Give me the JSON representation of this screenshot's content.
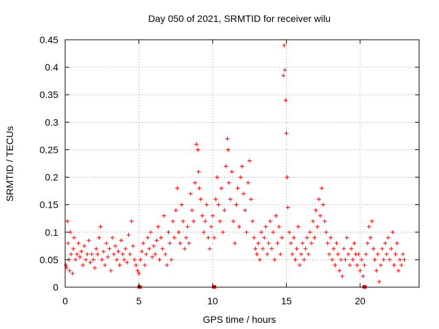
{
  "chart_data": {
    "type": "scatter",
    "title": "Day 050 of 2021, SRMTID for receiver wilu",
    "xlabel": "GPS time / hours",
    "ylabel": "SRMTID / TECUs",
    "xlim": [
      0,
      24
    ],
    "ylim": [
      0,
      0.45
    ],
    "x_ticks": [
      "0",
      "5",
      "10",
      "15",
      "20"
    ],
    "x_tick_values": [
      0,
      5,
      10,
      15,
      20
    ],
    "y_ticks": [
      "0",
      "0.05",
      "0.1",
      "0.15",
      "0.2",
      "0.25",
      "0.3",
      "0.35",
      "0.4",
      "0.45"
    ],
    "y_tick_values": [
      0,
      0.05,
      0.1,
      0.15,
      0.2,
      0.25,
      0.3,
      0.35,
      0.4,
      0.45
    ],
    "grid": true,
    "marker": "+",
    "series": [
      {
        "name": "SRMTID",
        "color": "#ff0000",
        "points": [
          [
            0.05,
            0.04
          ],
          [
            0.1,
            0.035
          ],
          [
            0.15,
            0.12
          ],
          [
            0.2,
            0.08
          ],
          [
            0.25,
            0.05
          ],
          [
            0.3,
            0.03
          ],
          [
            0.35,
            0.1
          ],
          [
            0.4,
            0.06
          ],
          [
            0.5,
            0.025
          ],
          [
            0.55,
            0.07
          ],
          [
            0.6,
            0.09
          ],
          [
            0.7,
            0.05
          ],
          [
            0.8,
            0.06
          ],
          [
            0.9,
            0.08
          ],
          [
            1.0,
            0.055
          ],
          [
            1.1,
            0.065
          ],
          [
            1.2,
            0.04
          ],
          [
            1.3,
            0.075
          ],
          [
            1.4,
            0.05
          ],
          [
            1.5,
            0.06
          ],
          [
            1.6,
            0.085
          ],
          [
            1.7,
            0.045
          ],
          [
            1.8,
            0.06
          ],
          [
            1.9,
            0.05
          ],
          [
            2.0,
            0.035
          ],
          [
            2.1,
            0.07
          ],
          [
            2.2,
            0.06
          ],
          [
            2.3,
            0.09
          ],
          [
            2.4,
            0.11
          ],
          [
            2.5,
            0.05
          ],
          [
            2.6,
            0.065
          ],
          [
            2.7,
            0.04
          ],
          [
            2.8,
            0.08
          ],
          [
            2.9,
            0.055
          ],
          [
            3.0,
            0.07
          ],
          [
            3.1,
            0.03
          ],
          [
            3.2,
            0.09
          ],
          [
            3.3,
            0.06
          ],
          [
            3.4,
            0.075
          ],
          [
            3.5,
            0.05
          ],
          [
            3.6,
            0.065
          ],
          [
            3.7,
            0.04
          ],
          [
            3.8,
            0.085
          ],
          [
            3.9,
            0.06
          ],
          [
            4.0,
            0.05
          ],
          [
            4.1,
            0.07
          ],
          [
            4.2,
            0.045
          ],
          [
            4.3,
            0.095
          ],
          [
            4.4,
            0.06
          ],
          [
            4.5,
            0.12
          ],
          [
            4.6,
            0.075
          ],
          [
            4.7,
            0.05
          ],
          [
            4.8,
            0.04
          ],
          [
            4.9,
            0.03
          ],
          [
            5.0,
            0.025
          ],
          [
            5.1,
            0.05
          ],
          [
            5.2,
            0.065
          ],
          [
            5.3,
            0.08
          ],
          [
            5.4,
            0.04
          ],
          [
            5.5,
            0.06
          ],
          [
            5.6,
            0.09
          ],
          [
            5.7,
            0.07
          ],
          [
            5.8,
            0.1
          ],
          [
            5.9,
            0.055
          ],
          [
            6.0,
            0.075
          ],
          [
            6.1,
            0.06
          ],
          [
            6.2,
            0.085
          ],
          [
            6.3,
            0.11
          ],
          [
            6.4,
            0.05
          ],
          [
            6.5,
            0.09
          ],
          [
            6.6,
            0.07
          ],
          [
            6.7,
            0.13
          ],
          [
            6.8,
            0.06
          ],
          [
            6.9,
            0.04
          ],
          [
            7.0,
            0.1
          ],
          [
            7.1,
            0.08
          ],
          [
            7.2,
            0.05
          ],
          [
            7.3,
            0.12
          ],
          [
            7.4,
            0.09
          ],
          [
            7.5,
            0.14
          ],
          [
            7.6,
            0.18
          ],
          [
            7.7,
            0.1
          ],
          [
            7.8,
            0.08
          ],
          [
            7.9,
            0.15
          ],
          [
            8.0,
            0.12
          ],
          [
            8.1,
            0.07
          ],
          [
            8.2,
            0.09
          ],
          [
            8.3,
            0.11
          ],
          [
            8.4,
            0.08
          ],
          [
            8.5,
            0.17
          ],
          [
            8.6,
            0.14
          ],
          [
            8.7,
            0.12
          ],
          [
            8.8,
            0.19
          ],
          [
            8.9,
            0.26
          ],
          [
            9.0,
            0.25
          ],
          [
            9.05,
            0.21
          ],
          [
            9.1,
            0.18
          ],
          [
            9.2,
            0.16
          ],
          [
            9.3,
            0.13
          ],
          [
            9.4,
            0.1
          ],
          [
            9.5,
            0.12
          ],
          [
            9.6,
            0.15
          ],
          [
            9.7,
            0.09
          ],
          [
            9.8,
            0.07
          ],
          [
            9.9,
            0.11
          ],
          [
            10.0,
            0.13
          ],
          [
            10.1,
            0.09
          ],
          [
            10.2,
            0.16
          ],
          [
            10.3,
            0.2
          ],
          [
            10.4,
            0.15
          ],
          [
            10.5,
            0.12
          ],
          [
            10.6,
            0.18
          ],
          [
            10.7,
            0.1
          ],
          [
            10.8,
            0.14
          ],
          [
            10.9,
            0.22
          ],
          [
            11.0,
            0.27
          ],
          [
            11.05,
            0.25
          ],
          [
            11.1,
            0.19
          ],
          [
            11.2,
            0.16
          ],
          [
            11.3,
            0.21
          ],
          [
            11.4,
            0.12
          ],
          [
            11.5,
            0.08
          ],
          [
            11.6,
            0.15
          ],
          [
            11.7,
            0.18
          ],
          [
            11.8,
            0.11
          ],
          [
            11.9,
            0.2
          ],
          [
            12.0,
            0.22
          ],
          [
            12.1,
            0.17
          ],
          [
            12.2,
            0.14
          ],
          [
            12.3,
            0.1
          ],
          [
            12.4,
            0.19
          ],
          [
            12.5,
            0.23
          ],
          [
            12.6,
            0.16
          ],
          [
            12.7,
            0.12
          ],
          [
            12.8,
            0.09
          ],
          [
            12.9,
            0.07
          ],
          [
            13.0,
            0.06
          ],
          [
            13.1,
            0.08
          ],
          [
            13.2,
            0.05
          ],
          [
            13.3,
            0.1
          ],
          [
            13.4,
            0.07
          ],
          [
            13.5,
            0.09
          ],
          [
            13.6,
            0.11
          ],
          [
            13.7,
            0.06
          ],
          [
            13.8,
            0.08
          ],
          [
            13.9,
            0.12
          ],
          [
            14.0,
            0.07
          ],
          [
            14.1,
            0.1
          ],
          [
            14.2,
            0.05
          ],
          [
            14.3,
            0.13
          ],
          [
            14.4,
            0.08
          ],
          [
            14.5,
            0.11
          ],
          [
            14.6,
            0.06
          ],
          [
            14.7,
            0.09
          ],
          [
            14.8,
            0.385
          ],
          [
            14.85,
            0.44
          ],
          [
            14.9,
            0.395
          ],
          [
            14.95,
            0.34
          ],
          [
            15.0,
            0.28
          ],
          [
            15.05,
            0.2
          ],
          [
            15.1,
            0.145
          ],
          [
            15.2,
            0.1
          ],
          [
            15.3,
            0.08
          ],
          [
            15.4,
            0.06
          ],
          [
            15.5,
            0.09
          ],
          [
            15.6,
            0.05
          ],
          [
            15.7,
            0.07
          ],
          [
            15.8,
            0.11
          ],
          [
            15.9,
            0.04
          ],
          [
            16.0,
            0.06
          ],
          [
            16.1,
            0.08
          ],
          [
            16.2,
            0.05
          ],
          [
            16.3,
            0.07
          ],
          [
            16.4,
            0.09
          ],
          [
            16.5,
            0.06
          ],
          [
            16.6,
            0.1
          ],
          [
            16.7,
            0.08
          ],
          [
            16.8,
            0.12
          ],
          [
            16.9,
            0.09
          ],
          [
            17.0,
            0.14
          ],
          [
            17.1,
            0.11
          ],
          [
            17.2,
            0.16
          ],
          [
            17.3,
            0.13
          ],
          [
            17.4,
            0.18
          ],
          [
            17.5,
            0.15
          ],
          [
            17.6,
            0.12
          ],
          [
            17.7,
            0.1
          ],
          [
            17.8,
            0.08
          ],
          [
            17.9,
            0.06
          ],
          [
            18.0,
            0.09
          ],
          [
            18.1,
            0.05
          ],
          [
            18.2,
            0.07
          ],
          [
            18.3,
            0.04
          ],
          [
            18.4,
            0.08
          ],
          [
            18.5,
            0.06
          ],
          [
            18.6,
            0.03
          ],
          [
            18.7,
            0.05
          ],
          [
            18.8,
            0.02
          ],
          [
            18.9,
            0.07
          ],
          [
            19.0,
            0.05
          ],
          [
            19.1,
            0.09
          ],
          [
            19.2,
            0.06
          ],
          [
            19.3,
            0.04
          ],
          [
            19.4,
            0.07
          ],
          [
            19.5,
            0.05
          ],
          [
            19.6,
            0.08
          ],
          [
            19.7,
            0.06
          ],
          [
            19.8,
            0.04
          ],
          [
            19.9,
            0.06
          ],
          [
            20.0,
            0.03
          ],
          [
            20.1,
            0.05
          ],
          [
            20.2,
            0.02
          ],
          [
            20.3,
            0.04
          ],
          [
            20.4,
            0.06
          ],
          [
            20.5,
            0.08
          ],
          [
            20.6,
            0.11
          ],
          [
            20.7,
            0.09
          ],
          [
            20.8,
            0.12
          ],
          [
            20.9,
            0.07
          ],
          [
            21.0,
            0.05
          ],
          [
            21.1,
            0.03
          ],
          [
            21.2,
            0.06
          ],
          [
            21.3,
            0.01
          ],
          [
            21.4,
            0.04
          ],
          [
            21.5,
            0.07
          ],
          [
            21.6,
            0.05
          ],
          [
            21.7,
            0.08
          ],
          [
            21.8,
            0.06
          ],
          [
            21.9,
            0.09
          ],
          [
            22.0,
            0.05
          ],
          [
            22.1,
            0.07
          ],
          [
            22.2,
            0.1
          ],
          [
            22.3,
            0.04
          ],
          [
            22.4,
            0.06
          ],
          [
            22.5,
            0.08
          ],
          [
            22.6,
            0.03
          ],
          [
            22.7,
            0.05
          ],
          [
            22.8,
            0.04
          ],
          [
            22.9,
            0.06
          ],
          [
            23.0,
            0.05
          ]
        ]
      }
    ],
    "gap_markers_x": [
      5.05,
      10.1,
      20.3
    ]
  }
}
